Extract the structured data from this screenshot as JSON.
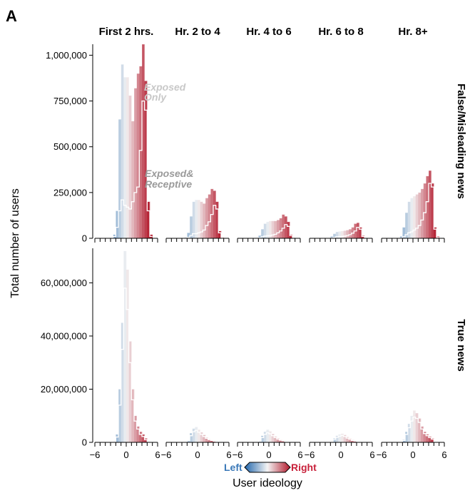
{
  "chart_data": {
    "type": "histogram",
    "panel_label": "A",
    "columns": [
      "First 2 hrs.",
      "Hr. 2 to 4",
      "Hr. 4 to 6",
      "Hr. 6 to 8",
      "Hr. 8+"
    ],
    "rows": [
      {
        "name": "False/Misleading news",
        "ylim": [
          0,
          1060000
        ],
        "yticks": [
          0,
          250000,
          500000,
          750000,
          1000000
        ],
        "ytick_labels": [
          "0",
          "250,000",
          "500,000",
          "750,000",
          "1,000,000"
        ],
        "annotations": [
          {
            "text": "Exposed",
            "series": "exposed_only"
          },
          {
            "text": "Only",
            "series": "exposed_only"
          },
          {
            "text": "Exposed&",
            "series": "exposed_receptive"
          },
          {
            "text": "Receptive",
            "series": "exposed_receptive"
          }
        ],
        "panels": [
          {
            "column": "First 2 hrs.",
            "exposed_only": [
              0,
              0,
              0,
              0,
              0,
              20000,
              150000,
              650000,
              950000,
              880000,
              880000,
              780000,
              640000,
              820000,
              900000,
              940000,
              1060000,
              860000,
              200000,
              20000
            ],
            "exposed_receptive": [
              0,
              0,
              0,
              0,
              0,
              10000,
              60000,
              150000,
              210000,
              180000,
              170000,
              160000,
              200000,
              250000,
              280000,
              480000,
              750000,
              700000,
              150000,
              10000
            ]
          },
          {
            "column": "Hr. 2 to 4",
            "exposed_only": [
              0,
              0,
              0,
              0,
              0,
              5000,
              30000,
              120000,
              200000,
              210000,
              210000,
              200000,
              190000,
              220000,
              240000,
              270000,
              260000,
              200000,
              40000,
              5000
            ],
            "exposed_receptive": [
              0,
              0,
              0,
              0,
              0,
              1000,
              5000,
              15000,
              25000,
              25000,
              30000,
              35000,
              45000,
              70000,
              90000,
              130000,
              180000,
              160000,
              30000,
              2000
            ]
          },
          {
            "column": "Hr. 4 to 6",
            "exposed_only": [
              0,
              0,
              0,
              0,
              0,
              3000,
              15000,
              50000,
              80000,
              90000,
              95000,
              95000,
              95000,
              100000,
              110000,
              130000,
              120000,
              90000,
              20000,
              3000
            ],
            "exposed_receptive": [
              0,
              0,
              0,
              0,
              0,
              500,
              3000,
              8000,
              12000,
              14000,
              15000,
              18000,
              22000,
              30000,
              40000,
              55000,
              75000,
              65000,
              15000,
              1000
            ]
          },
          {
            "column": "Hr. 6 to 8",
            "exposed_only": [
              0,
              0,
              0,
              0,
              0,
              2000,
              10000,
              25000,
              35000,
              38000,
              40000,
              42000,
              45000,
              50000,
              60000,
              80000,
              85000,
              60000,
              15000,
              2000
            ],
            "exposed_receptive": [
              0,
              0,
              0,
              0,
              0,
              500,
              2000,
              5000,
              8000,
              9000,
              10000,
              12000,
              15000,
              20000,
              28000,
              40000,
              60000,
              50000,
              10000,
              1000
            ]
          },
          {
            "column": "Hr. 8+",
            "exposed_only": [
              0,
              0,
              0,
              0,
              0,
              10000,
              60000,
              140000,
              200000,
              220000,
              230000,
              240000,
              250000,
              270000,
              300000,
              340000,
              370000,
              300000,
              60000,
              10000
            ],
            "exposed_receptive": [
              0,
              0,
              0,
              0,
              0,
              2000,
              8000,
              20000,
              30000,
              35000,
              45000,
              55000,
              70000,
              100000,
              140000,
              200000,
              300000,
              280000,
              50000,
              5000
            ]
          }
        ]
      },
      {
        "name": "True news",
        "ylim": [
          0,
          73000000
        ],
        "yticks": [
          0,
          20000000,
          40000000,
          60000000
        ],
        "ytick_labels": [
          "0",
          "20,000,000",
          "40,000,000",
          "60,000,000"
        ],
        "annotations": [],
        "panels": [
          {
            "column": "First 2 hrs.",
            "exposed_only": [
              0,
              0,
              0,
              0,
              0,
              500000,
              3000000,
              20000000,
              45000000,
              72000000,
              65000000,
              38000000,
              20000000,
              10000000,
              6000000,
              4000000,
              3000000,
              1500000,
              300000,
              50000
            ],
            "exposed_receptive": [
              0,
              0,
              0,
              0,
              0,
              300000,
              2000000,
              14000000,
              35000000,
              58000000,
              50000000,
              30000000,
              16000000,
              8000000,
              5000000,
              3000000,
              2200000,
              1000000,
              200000,
              30000
            ]
          },
          {
            "column": "Hr. 2 to 4",
            "exposed_only": [
              0,
              0,
              0,
              0,
              0,
              100000,
              800000,
              3500000,
              5200000,
              5800000,
              4800000,
              3800000,
              2800000,
              1800000,
              1200000,
              800000,
              500000,
              300000,
              80000,
              10000
            ],
            "exposed_receptive": [
              0,
              0,
              0,
              0,
              0,
              80000,
              600000,
              2500000,
              4000000,
              4500000,
              3800000,
              3000000,
              2200000,
              1500000,
              1000000,
              700000,
              400000,
              250000,
              60000,
              8000
            ]
          },
          {
            "column": "Hr. 4 to 6",
            "exposed_only": [
              0,
              0,
              0,
              0,
              0,
              80000,
              600000,
              2500000,
              4000000,
              4800000,
              4200000,
              3200000,
              2200000,
              1500000,
              1000000,
              700000,
              400000,
              250000,
              60000,
              8000
            ],
            "exposed_receptive": [
              0,
              0,
              0,
              0,
              0,
              60000,
              400000,
              1800000,
              3000000,
              3600000,
              3200000,
              2500000,
              1800000,
              1200000,
              800000,
              550000,
              320000,
              200000,
              50000,
              6000
            ]
          },
          {
            "column": "Hr. 6 to 8",
            "exposed_only": [
              0,
              0,
              0,
              0,
              0,
              50000,
              400000,
              1500000,
              2500000,
              3000000,
              3300000,
              2800000,
              2000000,
              1400000,
              900000,
              600000,
              350000,
              200000,
              50000,
              6000
            ],
            "exposed_receptive": [
              0,
              0,
              0,
              0,
              0,
              40000,
              300000,
              1100000,
              1900000,
              2300000,
              2600000,
              2200000,
              1600000,
              1100000,
              700000,
              480000,
              280000,
              160000,
              40000,
              5000
            ]
          },
          {
            "column": "Hr. 8+",
            "exposed_only": [
              0,
              0,
              0,
              0,
              0,
              150000,
              1000000,
              4000000,
              7000000,
              10000000,
              12000000,
              11000000,
              9000000,
              6000000,
              4000000,
              3000000,
              2200000,
              1500000,
              300000,
              40000
            ],
            "exposed_receptive": [
              0,
              0,
              0,
              0,
              0,
              100000,
              700000,
              3000000,
              5500000,
              8000000,
              9500000,
              9000000,
              7500000,
              5000000,
              3300000,
              2500000,
              1800000,
              1200000,
              250000,
              30000
            ]
          }
        ]
      }
    ],
    "x": {
      "bin_start": -5,
      "bin_width": 0.5,
      "xlim": [
        -6,
        6
      ],
      "tick_labels": [
        "−6",
        "0",
        "6"
      ]
    },
    "xlabel": "User ideology",
    "ylabel": "Total number of users",
    "legend": {
      "left": "Left",
      "right": "Right"
    },
    "colors": {
      "left": "#2166ac",
      "mid": "#f4f4f4",
      "right": "#b2182b",
      "left_label": "#3a78b8",
      "right_label": "#c8203a",
      "annot_exposed": "#c8c8c8",
      "annot_receptive": "#9a9a9a"
    }
  }
}
